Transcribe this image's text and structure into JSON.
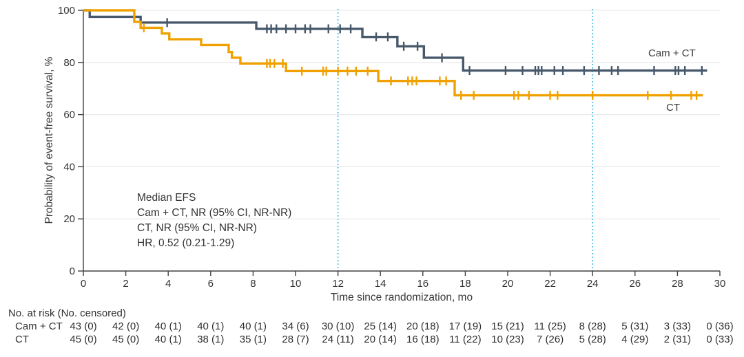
{
  "figure": {
    "ylabel": "Probability of event-free survival, %",
    "xlabel": "Time since randomization, mo",
    "legend": {
      "camct": "Cam + CT",
      "ct": "CT"
    },
    "annotation": {
      "line1": "Median EFS",
      "line2": "Cam + CT, NR (95% CI, NR-NR)",
      "line3": "CT, NR (95% CI, NR-NR)",
      "line4": "HR, 0.52 (0.21-1.29)"
    }
  },
  "colors": {
    "camct": "#47586B",
    "ct": "#F0A100",
    "reference_line": "#3FB8E6",
    "grid": "#E9E9E9",
    "axis": "#404040",
    "text": "#333333"
  },
  "chart_data": {
    "type": "line",
    "subtype": "kaplan-meier-step",
    "title": "",
    "xlabel": "Time since randomization, mo",
    "ylabel": "Probability of event-free survival, %",
    "xlim": [
      0,
      30
    ],
    "ylim": [
      0,
      100
    ],
    "xticks": [
      0,
      2,
      4,
      6,
      8,
      10,
      12,
      14,
      16,
      18,
      20,
      22,
      24,
      26,
      28,
      30
    ],
    "yticks": [
      0,
      20,
      40,
      60,
      80,
      100
    ],
    "grid": "horizontal",
    "legend_position": "right-of-curves",
    "reference_vlines": {
      "x": [
        12,
        24
      ],
      "style": "dotted",
      "color": "#3FB8E6"
    },
    "series": [
      {
        "name": "Cam + CT",
        "color": "#47586B",
        "end": 29.4,
        "steps": [
          [
            0,
            100
          ],
          [
            0.3,
            97.5
          ],
          [
            2.7,
            95.3
          ],
          [
            8.15,
            92.9
          ],
          [
            13.15,
            89.8
          ],
          [
            14.8,
            86.2
          ],
          [
            16.05,
            81.8
          ],
          [
            17.9,
            76.9
          ]
        ],
        "censor_marks": [
          [
            3.95,
            95.3
          ],
          [
            8.65,
            92.9
          ],
          [
            8.85,
            92.9
          ],
          [
            9.1,
            92.9
          ],
          [
            9.55,
            92.9
          ],
          [
            10.0,
            92.9
          ],
          [
            10.45,
            92.9
          ],
          [
            10.7,
            92.9
          ],
          [
            11.55,
            92.9
          ],
          [
            12.1,
            92.9
          ],
          [
            12.6,
            92.9
          ],
          [
            13.8,
            89.8
          ],
          [
            14.35,
            89.8
          ],
          [
            15.1,
            86.2
          ],
          [
            15.75,
            86.2
          ],
          [
            16.9,
            81.8
          ],
          [
            18.2,
            76.9
          ],
          [
            19.9,
            76.9
          ],
          [
            20.7,
            76.9
          ],
          [
            21.3,
            76.9
          ],
          [
            21.45,
            76.9
          ],
          [
            21.6,
            76.9
          ],
          [
            22.2,
            76.9
          ],
          [
            22.6,
            76.9
          ],
          [
            23.6,
            76.9
          ],
          [
            24.3,
            76.9
          ],
          [
            24.9,
            76.9
          ],
          [
            25.2,
            76.9
          ],
          [
            26.9,
            76.9
          ],
          [
            27.9,
            76.9
          ],
          [
            28.05,
            76.9
          ],
          [
            28.35,
            76.9
          ],
          [
            29.15,
            76.9
          ]
        ]
      },
      {
        "name": "CT",
        "color": "#F0A100",
        "end": 29.2,
        "steps": [
          [
            0,
            100
          ],
          [
            2.4,
            95.6
          ],
          [
            2.7,
            93.3
          ],
          [
            3.7,
            91.1
          ],
          [
            4.05,
            88.9
          ],
          [
            5.55,
            86.7
          ],
          [
            6.85,
            84.0
          ],
          [
            7.0,
            81.8
          ],
          [
            7.4,
            79.6
          ],
          [
            9.55,
            76.7
          ],
          [
            13.9,
            72.9
          ],
          [
            17.5,
            67.4
          ]
        ],
        "censor_marks": [
          [
            2.85,
            93.3
          ],
          [
            8.65,
            79.6
          ],
          [
            8.8,
            79.6
          ],
          [
            9.0,
            79.6
          ],
          [
            9.4,
            79.6
          ],
          [
            10.3,
            76.7
          ],
          [
            11.3,
            76.7
          ],
          [
            11.45,
            76.7
          ],
          [
            12.0,
            76.7
          ],
          [
            12.45,
            76.7
          ],
          [
            12.85,
            76.7
          ],
          [
            13.4,
            76.7
          ],
          [
            14.5,
            72.9
          ],
          [
            15.3,
            72.9
          ],
          [
            15.5,
            72.9
          ],
          [
            15.7,
            72.9
          ],
          [
            16.8,
            72.9
          ],
          [
            17.1,
            72.9
          ],
          [
            17.8,
            67.4
          ],
          [
            18.4,
            67.4
          ],
          [
            20.3,
            67.4
          ],
          [
            20.5,
            67.4
          ],
          [
            21.0,
            67.4
          ],
          [
            22.0,
            67.4
          ],
          [
            22.35,
            67.4
          ],
          [
            24.0,
            67.4
          ],
          [
            26.6,
            67.4
          ],
          [
            27.7,
            67.4
          ],
          [
            28.65,
            67.4
          ],
          [
            28.9,
            67.4
          ]
        ]
      }
    ],
    "annotation": [
      "Median EFS",
      "Cam + CT, NR (95% CI, NR-NR)",
      "CT, NR (95% CI, NR-NR)",
      "HR, 0.52 (0.21-1.29)"
    ]
  },
  "risk_table": {
    "header": "No. at risk (No. censored)",
    "time_points": [
      0,
      2,
      4,
      6,
      8,
      10,
      12,
      14,
      16,
      18,
      20,
      22,
      24,
      26,
      28,
      30
    ],
    "rows": [
      {
        "label": "Cam + CT",
        "values": [
          "43 (0)",
          "42 (0)",
          "40 (1)",
          "40 (1)",
          "40 (1)",
          "34 (6)",
          "30 (10)",
          "25 (14)",
          "20 (18)",
          "17 (19)",
          "15 (21)",
          "11 (25)",
          "8 (28)",
          "5 (31)",
          "3 (33)",
          "0 (36)"
        ]
      },
      {
        "label": "CT",
        "values": [
          "45 (0)",
          "45 (0)",
          "40 (1)",
          "38 (1)",
          "35 (1)",
          "28 (7)",
          "24 (11)",
          "20 (14)",
          "16 (18)",
          "11 (22)",
          "10 (23)",
          "7 (26)",
          "5 (28)",
          "4 (29)",
          "2 (31)",
          "0 (33)"
        ]
      }
    ]
  }
}
